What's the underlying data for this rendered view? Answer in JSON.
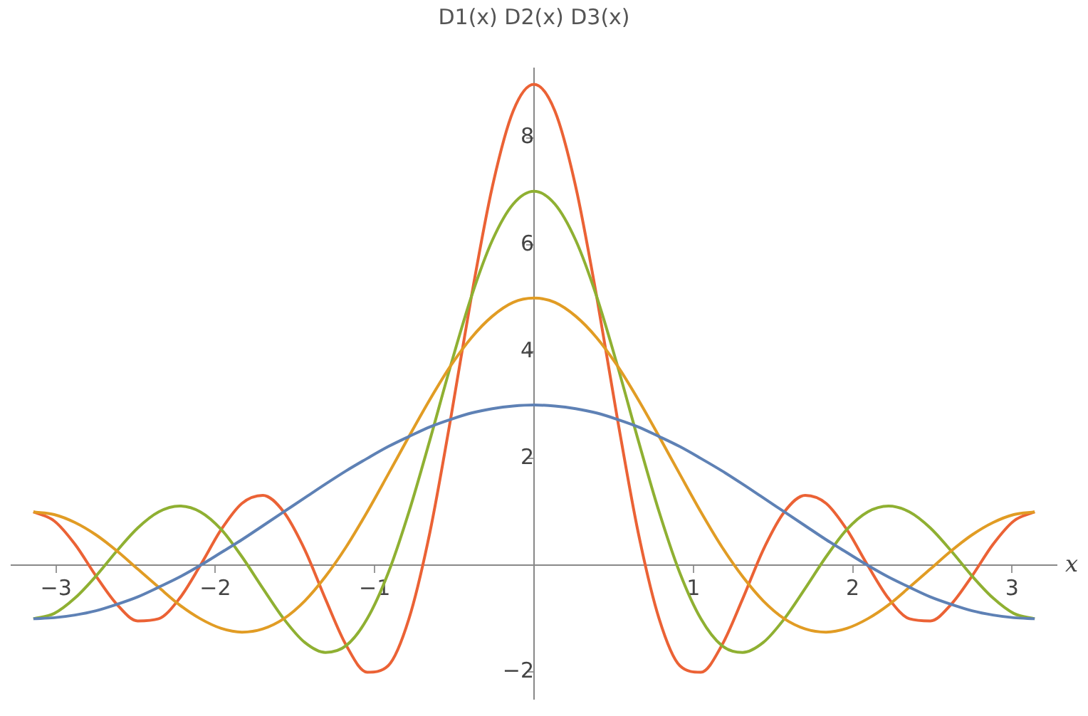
{
  "chart_data": {
    "type": "line",
    "title": "D1(x) D2(x) D3(x)",
    "xlabel": "x",
    "x": [
      -3.142,
      -3.011,
      -2.88,
      -2.749,
      -2.618,
      -2.487,
      -2.356,
      -2.225,
      -2.094,
      -1.963,
      -1.833,
      -1.702,
      -1.571,
      -1.44,
      -1.309,
      -1.178,
      -1.047,
      -0.916,
      -0.785,
      -0.654,
      -0.524,
      -0.393,
      -0.262,
      -0.131,
      0,
      0.131,
      0.262,
      0.393,
      0.524,
      0.654,
      0.785,
      0.916,
      1.047,
      1.178,
      1.309,
      1.44,
      1.571,
      1.702,
      1.833,
      1.963,
      2.094,
      2.225,
      2.356,
      2.487,
      2.618,
      2.749,
      2.88,
      3.011,
      3.142
    ],
    "series": [
      {
        "color": "#5e81b5",
        "values": [
          -1,
          -0.98,
          -0.93,
          -0.85,
          -0.73,
          -0.59,
          -0.41,
          -0.22,
          0,
          0.24,
          0.48,
          0.74,
          1,
          1.26,
          1.52,
          1.77,
          2,
          2.22,
          2.41,
          2.59,
          2.73,
          2.85,
          2.93,
          2.98,
          3,
          2.98,
          2.93,
          2.85,
          2.73,
          2.59,
          2.41,
          2.22,
          2,
          1.77,
          1.52,
          1.26,
          1,
          0.74,
          0.48,
          0.24,
          0,
          -0.22,
          -0.41,
          -0.59,
          -0.73,
          -0.85,
          -0.93,
          -0.98,
          -1
        ]
      },
      {
        "color": "#e19c24",
        "values": [
          1,
          0.95,
          0.8,
          0.57,
          0.27,
          -0.07,
          -0.41,
          -0.74,
          -1,
          -1.18,
          -1.25,
          -1.19,
          -1,
          -0.67,
          -0.21,
          0.35,
          1,
          1.7,
          2.41,
          3.1,
          3.73,
          4.26,
          4.66,
          4.92,
          5,
          4.92,
          4.66,
          4.26,
          3.73,
          3.1,
          2.41,
          1.7,
          1,
          0.35,
          -0.21,
          -0.67,
          -1,
          -1.19,
          -1.25,
          -1.18,
          -1,
          -0.74,
          -0.41,
          -0.07,
          0.27,
          0.57,
          0.8,
          0.95,
          1
        ]
      },
      {
        "color": "#8fb032",
        "values": [
          -1,
          -0.9,
          -0.61,
          -0.2,
          0.27,
          0.7,
          1,
          1.11,
          1,
          0.67,
          0.16,
          -0.43,
          -1,
          -1.44,
          -1.63,
          -1.5,
          -1,
          -0.15,
          1,
          2.34,
          3.73,
          5.03,
          6.08,
          6.76,
          7,
          6.76,
          6.08,
          5.03,
          3.73,
          2.34,
          1,
          -0.15,
          -1,
          -1.5,
          -1.63,
          -1.44,
          -1,
          -0.43,
          0.16,
          0.67,
          1,
          1.11,
          1,
          0.7,
          0.27,
          -0.2,
          -0.61,
          -0.9,
          -1
        ]
      },
      {
        "color": "#eb6235",
        "values": [
          1,
          0.83,
          0.39,
          -0.2,
          -0.73,
          -1.04,
          -1,
          -0.62,
          0,
          0.67,
          1.16,
          1.31,
          1,
          0.3,
          -0.63,
          -1.5,
          -2,
          -1.88,
          -1,
          0.61,
          2.73,
          5.03,
          7.08,
          8.5,
          9,
          8.5,
          7.08,
          5.03,
          2.73,
          0.61,
          -1,
          -1.88,
          -2,
          -1.5,
          -0.63,
          0.3,
          1,
          1.31,
          1.16,
          0.67,
          0,
          -0.62,
          -1,
          -1.04,
          -0.73,
          -0.2,
          0.39,
          0.83,
          1
        ]
      }
    ],
    "xlim": [
      -3.28,
      3.28
    ],
    "ylim": [
      -2.5,
      9.3
    ],
    "xticks": [
      -3,
      -2,
      -1,
      1,
      2,
      3
    ],
    "yticks": [
      -2,
      2,
      4,
      6,
      8
    ],
    "grid": false
  }
}
